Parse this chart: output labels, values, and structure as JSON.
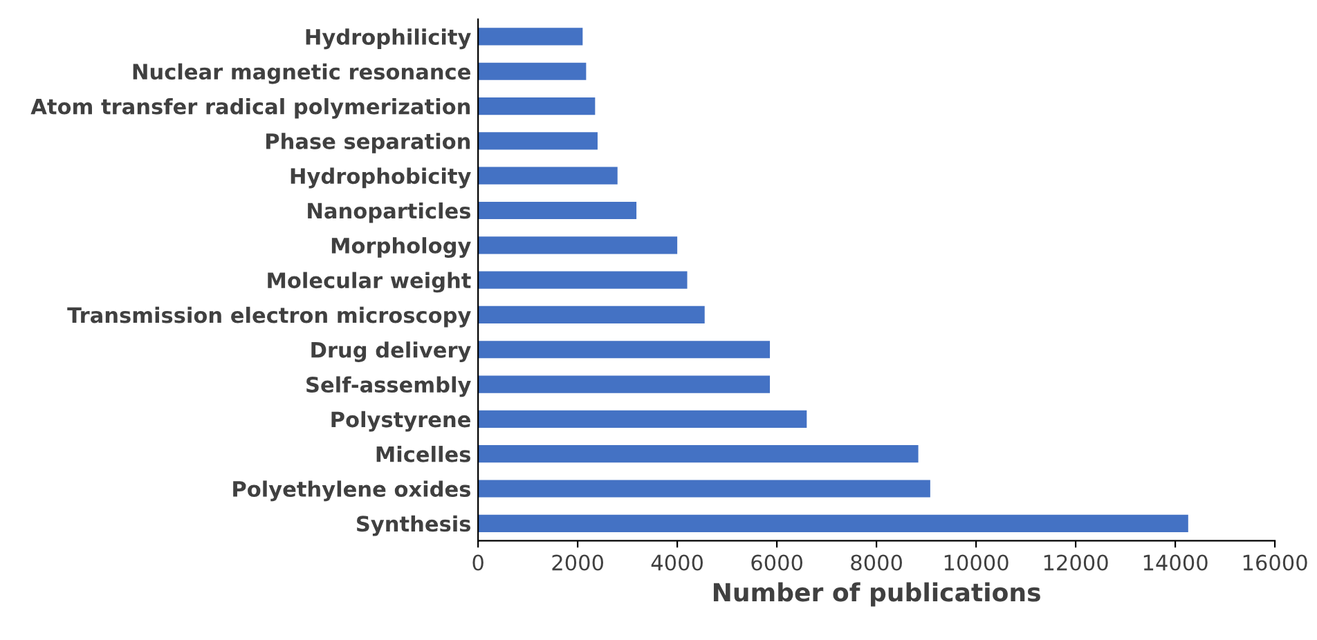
{
  "chart_data": {
    "type": "bar",
    "orientation": "horizontal",
    "xlabel": "Number of publications",
    "categories": [
      "Hydrophilicity",
      "Nuclear magnetic resonance",
      "Atom transfer radical polymerization",
      "Phase separation",
      "Hydrophobicity",
      "Nanoparticles",
      "Morphology",
      "Molecular weight",
      "Transmission electron microscopy",
      "Drug delivery",
      "Self-assembly",
      "Polystyrene",
      "Micelles",
      "Polyethylene oxides",
      "Synthesis"
    ],
    "values": [
      2100,
      2170,
      2350,
      2400,
      2800,
      3180,
      4000,
      4200,
      4550,
      5860,
      5860,
      6600,
      8840,
      9080,
      14260
    ],
    "color": "#4472c4",
    "xlim": [
      0,
      16000
    ],
    "xticks": [
      0,
      2000,
      4000,
      6000,
      8000,
      10000,
      12000,
      14000,
      16000
    ],
    "grid": false
  }
}
